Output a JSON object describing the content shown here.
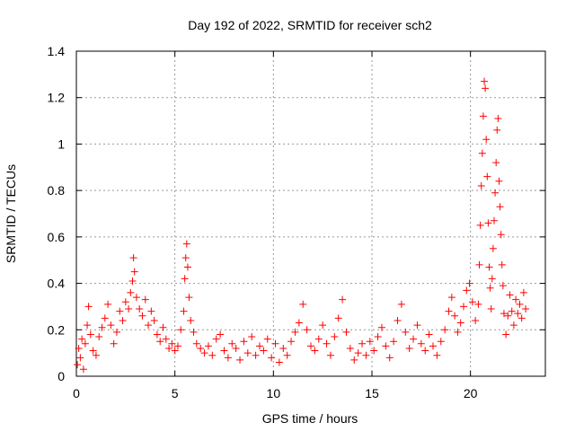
{
  "chart_data": {
    "type": "scatter",
    "title": "Day 192 of 2022, SRMTID for receiver sch2",
    "xlabel": "GPS time / hours",
    "ylabel": "SRMTID / TECUs",
    "xlim": [
      0,
      23.8
    ],
    "ylim": [
      0,
      1.4
    ],
    "xticks": [
      0,
      5,
      10,
      15,
      20
    ],
    "xtick_labels": [
      "0",
      "5",
      "10",
      "15",
      "20"
    ],
    "yticks": [
      0,
      0.2,
      0.4,
      0.6,
      0.8,
      1,
      1.2,
      1.4
    ],
    "ytick_labels": [
      "0",
      "0.2",
      "0.4",
      "0.6",
      "0.8",
      "1",
      "1.2",
      "1.4"
    ],
    "grid": true,
    "marker": "+",
    "marker_color": "#ff0000",
    "series": [
      {
        "name": "SRMTID",
        "points": [
          [
            0.05,
            0.05
          ],
          [
            0.12,
            0.12
          ],
          [
            0.2,
            0.08
          ],
          [
            0.28,
            0.16
          ],
          [
            0.36,
            0.03
          ],
          [
            0.45,
            0.14
          ],
          [
            0.55,
            0.22
          ],
          [
            0.62,
            0.3
          ],
          [
            0.72,
            0.18
          ],
          [
            0.85,
            0.11
          ],
          [
            1.0,
            0.09
          ],
          [
            1.15,
            0.17
          ],
          [
            1.3,
            0.21
          ],
          [
            1.45,
            0.25
          ],
          [
            1.6,
            0.31
          ],
          [
            1.75,
            0.22
          ],
          [
            1.9,
            0.14
          ],
          [
            2.05,
            0.19
          ],
          [
            2.2,
            0.28
          ],
          [
            2.35,
            0.24
          ],
          [
            2.5,
            0.32
          ],
          [
            2.65,
            0.29
          ],
          [
            2.75,
            0.36
          ],
          [
            2.85,
            0.41
          ],
          [
            2.9,
            0.51
          ],
          [
            2.95,
            0.45
          ],
          [
            3.05,
            0.34
          ],
          [
            3.2,
            0.29
          ],
          [
            3.35,
            0.26
          ],
          [
            3.5,
            0.33
          ],
          [
            3.65,
            0.22
          ],
          [
            3.8,
            0.28
          ],
          [
            3.95,
            0.24
          ],
          [
            4.1,
            0.18
          ],
          [
            4.25,
            0.15
          ],
          [
            4.4,
            0.21
          ],
          [
            4.55,
            0.16
          ],
          [
            4.7,
            0.12
          ],
          [
            4.85,
            0.14
          ],
          [
            5.0,
            0.11
          ],
          [
            5.15,
            0.13
          ],
          [
            5.3,
            0.2
          ],
          [
            5.45,
            0.28
          ],
          [
            5.5,
            0.42
          ],
          [
            5.55,
            0.51
          ],
          [
            5.6,
            0.57
          ],
          [
            5.65,
            0.47
          ],
          [
            5.72,
            0.34
          ],
          [
            5.8,
            0.24
          ],
          [
            5.95,
            0.19
          ],
          [
            6.1,
            0.14
          ],
          [
            6.3,
            0.12
          ],
          [
            6.5,
            0.1
          ],
          [
            6.7,
            0.13
          ],
          [
            6.9,
            0.09
          ],
          [
            7.1,
            0.16
          ],
          [
            7.3,
            0.18
          ],
          [
            7.5,
            0.11
          ],
          [
            7.7,
            0.08
          ],
          [
            7.9,
            0.14
          ],
          [
            8.1,
            0.12
          ],
          [
            8.3,
            0.07
          ],
          [
            8.5,
            0.15
          ],
          [
            8.7,
            0.1
          ],
          [
            8.9,
            0.17
          ],
          [
            9.1,
            0.09
          ],
          [
            9.3,
            0.13
          ],
          [
            9.5,
            0.11
          ],
          [
            9.7,
            0.16
          ],
          [
            9.9,
            0.08
          ],
          [
            10.1,
            0.14
          ],
          [
            10.3,
            0.06
          ],
          [
            10.5,
            0.12
          ],
          [
            10.7,
            0.09
          ],
          [
            10.9,
            0.15
          ],
          [
            11.1,
            0.19
          ],
          [
            11.3,
            0.23
          ],
          [
            11.5,
            0.31
          ],
          [
            11.7,
            0.2
          ],
          [
            11.9,
            0.13
          ],
          [
            12.1,
            0.11
          ],
          [
            12.3,
            0.16
          ],
          [
            12.5,
            0.22
          ],
          [
            12.7,
            0.14
          ],
          [
            12.9,
            0.09
          ],
          [
            13.1,
            0.17
          ],
          [
            13.3,
            0.25
          ],
          [
            13.5,
            0.33
          ],
          [
            13.7,
            0.19
          ],
          [
            13.9,
            0.12
          ],
          [
            14.1,
            0.07
          ],
          [
            14.3,
            0.1
          ],
          [
            14.5,
            0.14
          ],
          [
            14.7,
            0.09
          ],
          [
            14.9,
            0.15
          ],
          [
            15.1,
            0.11
          ],
          [
            15.3,
            0.17
          ],
          [
            15.5,
            0.21
          ],
          [
            15.7,
            0.13
          ],
          [
            15.9,
            0.08
          ],
          [
            16.1,
            0.15
          ],
          [
            16.3,
            0.24
          ],
          [
            16.5,
            0.31
          ],
          [
            16.7,
            0.19
          ],
          [
            16.9,
            0.12
          ],
          [
            17.1,
            0.16
          ],
          [
            17.3,
            0.22
          ],
          [
            17.5,
            0.14
          ],
          [
            17.7,
            0.11
          ],
          [
            17.9,
            0.18
          ],
          [
            18.1,
            0.13
          ],
          [
            18.3,
            0.09
          ],
          [
            18.5,
            0.15
          ],
          [
            18.7,
            0.2
          ],
          [
            18.9,
            0.28
          ],
          [
            19.05,
            0.34
          ],
          [
            19.2,
            0.26
          ],
          [
            19.35,
            0.19
          ],
          [
            19.5,
            0.23
          ],
          [
            19.65,
            0.3
          ],
          [
            19.8,
            0.37
          ],
          [
            19.95,
            0.4
          ],
          [
            20.1,
            0.32
          ],
          [
            20.25,
            0.24
          ],
          [
            20.4,
            0.31
          ],
          [
            20.45,
            0.48
          ],
          [
            20.5,
            0.65
          ],
          [
            20.55,
            0.82
          ],
          [
            20.6,
            0.96
          ],
          [
            20.65,
            1.12
          ],
          [
            20.7,
            1.27
          ],
          [
            20.75,
            1.24
          ],
          [
            20.8,
            1.02
          ],
          [
            20.85,
            0.86
          ],
          [
            20.9,
            0.66
          ],
          [
            20.95,
            0.47
          ],
          [
            21.0,
            0.38
          ],
          [
            21.05,
            0.29
          ],
          [
            21.1,
            0.42
          ],
          [
            21.15,
            0.55
          ],
          [
            21.2,
            0.67
          ],
          [
            21.25,
            0.79
          ],
          [
            21.3,
            0.92
          ],
          [
            21.35,
            1.06
          ],
          [
            21.4,
            1.11
          ],
          [
            21.45,
            0.84
          ],
          [
            21.5,
            0.73
          ],
          [
            21.55,
            0.61
          ],
          [
            21.6,
            0.48
          ],
          [
            21.65,
            0.39
          ],
          [
            21.7,
            0.27
          ],
          [
            21.8,
            0.18
          ],
          [
            21.9,
            0.26
          ],
          [
            22.0,
            0.35
          ],
          [
            22.1,
            0.28
          ],
          [
            22.2,
            0.22
          ],
          [
            22.3,
            0.33
          ],
          [
            22.4,
            0.27
          ],
          [
            22.5,
            0.31
          ],
          [
            22.6,
            0.25
          ],
          [
            22.7,
            0.36
          ],
          [
            22.8,
            0.29
          ]
        ]
      }
    ]
  }
}
